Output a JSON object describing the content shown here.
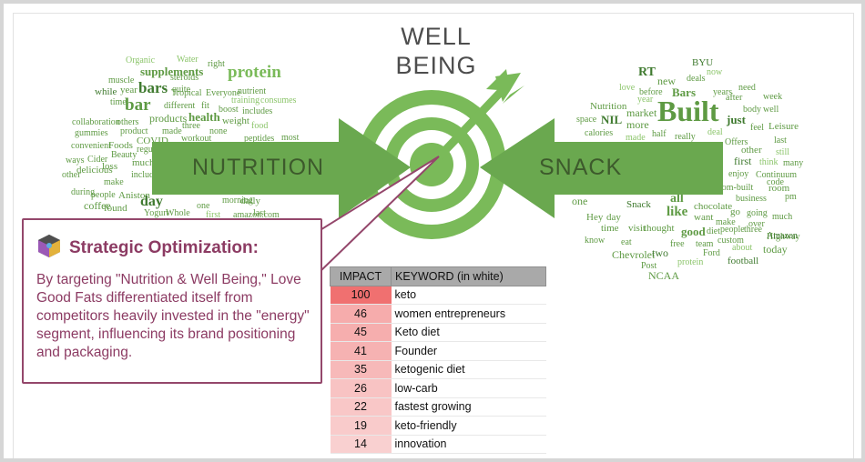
{
  "title": {
    "line1": "WELL",
    "line2": "BEING"
  },
  "arrows": {
    "left_label": "NUTRITION",
    "right_label": "SNACK"
  },
  "callout": {
    "heading": "Strategic Optimization:",
    "body": "By targeting \"Nutrition & Well Being,\" Love Good Fats differentiated itself from competitors heavily invested in the \"energy\" segment, influencing its brand positioning and packaging."
  },
  "table": {
    "headers": [
      "IMPACT",
      "KEYWORD (in white)"
    ],
    "rows": [
      {
        "impact": 100,
        "keyword": "keto"
      },
      {
        "impact": 46,
        "keyword": "women entrepreneurs"
      },
      {
        "impact": 45,
        "keyword": "Keto diet"
      },
      {
        "impact": 41,
        "keyword": "Founder"
      },
      {
        "impact": 35,
        "keyword": "ketogenic diet"
      },
      {
        "impact": 26,
        "keyword": "low-carb"
      },
      {
        "impact": 22,
        "keyword": "fastest growing"
      },
      {
        "impact": 19,
        "keyword": "keto-friendly"
      },
      {
        "impact": 14,
        "keyword": "innovation"
      }
    ]
  },
  "colors": {
    "green": "#7aba59",
    "green_dark": "#5e9a43",
    "callout_accent": "#8c3b63",
    "impact_high": "#f07070",
    "impact_low": "#fbe0e0"
  },
  "word_clouds": {
    "left": [
      "Organic",
      "Water",
      "right",
      "supplements",
      "protein",
      "muscle",
      "year",
      "steroids",
      "nutrient",
      "while",
      "bars",
      "quite",
      "time",
      "bar",
      "Tropical",
      "Everyone",
      "training",
      "consumes",
      "different",
      "fit",
      "boost",
      "includes",
      "products",
      "health",
      "weight",
      "collaboration",
      "others",
      "three",
      "food",
      "gummies",
      "product",
      "made",
      "none",
      "workout",
      "peptides",
      "most",
      "convenient",
      "Foods",
      "regul",
      "COVID",
      "much",
      "ways",
      "Cider",
      "Beauty",
      "delicious",
      "loss",
      "other",
      "including",
      "make",
      "during",
      "people",
      "Aniston",
      "day",
      "morning",
      "daily",
      "coffee",
      "found",
      "one",
      "Yogurt",
      "Whole",
      "first",
      "amazon.com",
      "last"
    ],
    "right": [
      "BYU",
      "RT",
      "new",
      "deals",
      "now",
      "need",
      "Bars",
      "love",
      "before",
      "years",
      "week",
      "after",
      "Nutrition",
      "market",
      "year",
      "body",
      "well",
      "space",
      "NIL",
      "Built",
      "just",
      "more",
      "Leisure",
      "calories",
      "made",
      "half",
      "really",
      "deal",
      "feel",
      "last",
      "Offers",
      "other",
      "still",
      "first",
      "think",
      "many",
      "enjoy",
      "Continuum",
      "room",
      "tom-built",
      "code",
      "business",
      "pm",
      "Snack",
      "one",
      "all",
      "chocolate",
      "like",
      "go",
      "going",
      "much",
      "Hey",
      "day",
      "want",
      "make",
      "over",
      "time",
      "visit",
      "thought",
      "good",
      "diet",
      "people",
      "three",
      "Highway",
      "Amazon",
      "know",
      "eat",
      "free",
      "team",
      "custom",
      "about",
      "today",
      "Chevrolet",
      "two",
      "Ford",
      "football",
      "Post",
      "protein",
      "NCAA"
    ]
  }
}
